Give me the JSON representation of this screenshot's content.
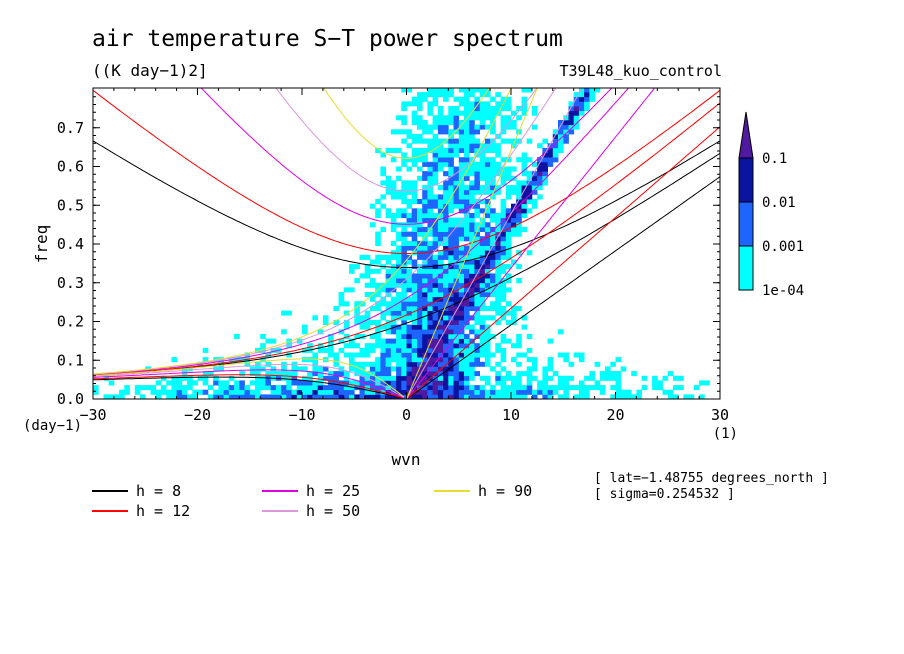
{
  "chart_data": {
    "type": "contour",
    "title": "air temperature S−T power spectrum",
    "units": "((K day−1)2]",
    "run_label": "T39L48_kuo_control",
    "xlabel": "wvn",
    "ylabel": "freq",
    "x_unit_label": "(1)",
    "y_unit_label": "(day−1)",
    "xlim": [
      -30,
      30
    ],
    "ylim": [
      0.0,
      0.8
    ],
    "x_ticks": [
      -30,
      -20,
      -10,
      0,
      10,
      20,
      30
    ],
    "x_tick_labels": [
      "−30",
      "−20",
      "−10",
      "0",
      "10",
      "20",
      "30"
    ],
    "y_ticks": [
      0.0,
      0.1,
      0.2,
      0.3,
      0.4,
      0.5,
      0.6,
      0.7
    ],
    "y_tick_labels": [
      "0.0",
      "0.1",
      "0.2",
      "0.3",
      "0.4",
      "0.5",
      "0.6",
      "0.7"
    ],
    "colorbar": {
      "levels": [
        "1e-04",
        "0.001",
        "0.01",
        "0.1"
      ],
      "colors": [
        "#00ffff",
        "#1e64ff",
        "#0a14a0",
        "#501aa0"
      ]
    },
    "dispersion_curves": [
      {
        "label": "h =  8",
        "equivalent_depth": 8,
        "color": "#000000"
      },
      {
        "label": "h = 12",
        "equivalent_depth": 12,
        "color": "#ff0000"
      },
      {
        "label": "h = 25",
        "equivalent_depth": 25,
        "color": "#e000e0"
      },
      {
        "label": "h = 50",
        "equivalent_depth": 50,
        "color": "#dc96dc"
      },
      {
        "label": "h = 90",
        "equivalent_depth": 90,
        "color": "#e6dc32"
      }
    ],
    "annotations": [
      "[ lat=−1.48755 degrees_north ]",
      "[ sigma=0.254532 ]"
    ]
  }
}
